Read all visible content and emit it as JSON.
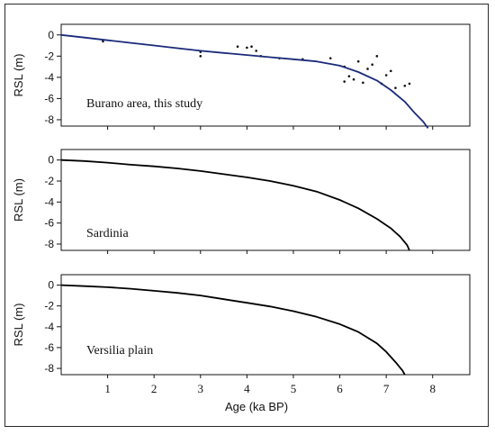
{
  "chart_data": {
    "type": "line",
    "xlabel": "Age (ka BP)",
    "x_ticks": [
      1,
      2,
      3,
      4,
      5,
      6,
      7,
      8
    ],
    "xlim": [
      0,
      8.8
    ],
    "panels": [
      {
        "label": "Burano area, this study",
        "ylabel": "RSL (m)",
        "y_ticks": [
          0,
          -2,
          -4,
          -6,
          -8
        ],
        "y_tick_labels": [
          "0",
          "-2",
          "-4",
          "-6",
          "-8"
        ],
        "ylim": [
          -8.6,
          1.0
        ],
        "curve_color": "#1a2a7a",
        "series": [
          {
            "x": [
              0,
              0.5,
              1,
              1.5,
              2,
              2.5,
              3,
              3.5,
              4,
              4.5,
              5,
              5.5,
              6,
              6.4,
              6.8,
              7.1,
              7.4,
              7.6,
              7.8,
              7.9
            ],
            "y": [
              0.0,
              -0.25,
              -0.5,
              -0.75,
              -1.0,
              -1.25,
              -1.5,
              -1.7,
              -1.9,
              -2.1,
              -2.3,
              -2.5,
              -2.9,
              -3.5,
              -4.3,
              -5.2,
              -6.3,
              -7.3,
              -8.2,
              -8.8
            ]
          }
        ],
        "scatter": {
          "x": [
            0.9,
            3.0,
            3.0,
            3.8,
            4.0,
            4.1,
            4.2,
            4.3,
            4.7,
            5.2,
            5.8,
            6.1,
            6.1,
            6.2,
            6.3,
            6.4,
            6.5,
            6.6,
            6.7,
            6.8,
            6.9,
            7.0,
            7.1,
            7.2,
            7.4,
            7.5
          ],
          "y": [
            -0.6,
            -1.6,
            -2.0,
            -1.1,
            -1.2,
            -1.1,
            -1.5,
            -2.0,
            -2.2,
            -2.3,
            -2.2,
            -3.0,
            -4.4,
            -3.9,
            -4.2,
            -2.5,
            -4.5,
            -3.2,
            -2.8,
            -2.0,
            -4.6,
            -3.8,
            -3.4,
            -5.0,
            -4.8,
            -4.6
          ]
        }
      },
      {
        "label": "Sardinia",
        "ylabel": "RSL (m)",
        "y_ticks": [
          0,
          -2,
          -4,
          -6,
          -8
        ],
        "y_tick_labels": [
          "0",
          "-2",
          "-4",
          "-6",
          "-8"
        ],
        "ylim": [
          -8.6,
          1.0
        ],
        "curve_color": "#000000",
        "series": [
          {
            "x": [
              0,
              0.5,
              1,
              1.5,
              2,
              2.5,
              3,
              3.5,
              4,
              4.5,
              5,
              5.5,
              6,
              6.4,
              6.8,
              7.1,
              7.3,
              7.45,
              7.5
            ],
            "y": [
              0.0,
              -0.1,
              -0.25,
              -0.45,
              -0.6,
              -0.8,
              -1.05,
              -1.35,
              -1.65,
              -2.0,
              -2.45,
              -3.0,
              -3.8,
              -4.6,
              -5.6,
              -6.5,
              -7.3,
              -8.1,
              -8.6
            ]
          }
        ]
      },
      {
        "label": "Versilia plain",
        "ylabel": "RSL (m)",
        "y_ticks": [
          0,
          -2,
          -4,
          -6,
          -8
        ],
        "y_tick_labels": [
          "0",
          "-2",
          "-4",
          "-6",
          "-8"
        ],
        "ylim": [
          -8.6,
          1.0
        ],
        "curve_color": "#000000",
        "series": [
          {
            "x": [
              0,
              0.5,
              1,
              1.5,
              2,
              2.5,
              3,
              3.5,
              4,
              4.5,
              5,
              5.5,
              6,
              6.4,
              6.8,
              7.0,
              7.2,
              7.35,
              7.4
            ],
            "y": [
              0.0,
              -0.1,
              -0.2,
              -0.35,
              -0.55,
              -0.75,
              -1.0,
              -1.35,
              -1.7,
              -2.05,
              -2.5,
              -3.05,
              -3.75,
              -4.5,
              -5.6,
              -6.4,
              -7.4,
              -8.2,
              -8.6
            ]
          }
        ]
      }
    ]
  }
}
